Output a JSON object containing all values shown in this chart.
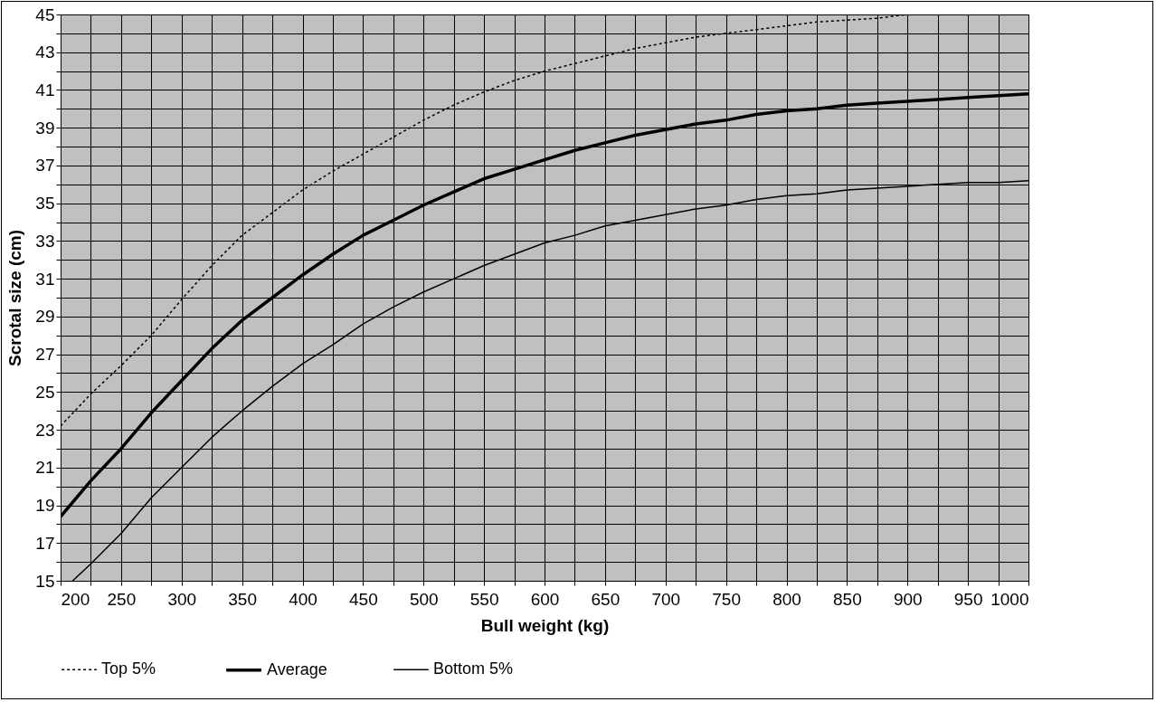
{
  "chart_data": {
    "type": "line",
    "xlabel": "Bull weight (kg)",
    "ylabel": "Scrotal size (cm)",
    "xlim": [
      200,
      1000
    ],
    "xticks": [
      200,
      {
        "value": 225,
        "label": null
      },
      250,
      {
        "value": 275,
        "label": null
      },
      300,
      {
        "value": 325,
        "label": null
      },
      350,
      {
        "value": 375,
        "label": null
      },
      400,
      {
        "value": 425,
        "label": null
      },
      450,
      {
        "value": 475,
        "label": null
      },
      500,
      {
        "value": 525,
        "label": null
      },
      550,
      {
        "value": 575,
        "label": null
      },
      600,
      {
        "value": 625,
        "label": null
      },
      650,
      {
        "value": 675,
        "label": null
      },
      700,
      {
        "value": 725,
        "label": null
      },
      750,
      {
        "value": 775,
        "label": null
      },
      800,
      {
        "value": 825,
        "label": null
      },
      850,
      {
        "value": 875,
        "label": null
      },
      900,
      {
        "value": 925,
        "label": null
      },
      950,
      {
        "value": 975,
        "label": null
      },
      1000
    ],
    "ylim": [
      15,
      45
    ],
    "yticks": [
      15,
      {
        "value": 16,
        "label": null
      },
      17,
      {
        "value": 18,
        "label": null
      },
      19,
      {
        "value": 20,
        "label": null
      },
      21,
      {
        "value": 22,
        "label": null
      },
      23,
      {
        "value": 24,
        "label": null
      },
      25,
      {
        "value": 26,
        "label": null
      },
      27,
      {
        "value": 28,
        "label": null
      },
      29,
      {
        "value": 30,
        "label": null
      },
      31,
      {
        "value": 32,
        "label": null
      },
      33,
      {
        "value": 34,
        "label": null
      },
      35,
      {
        "value": 36,
        "label": null
      },
      37,
      {
        "value": 38,
        "label": null
      },
      39,
      {
        "value": 40,
        "label": null
      },
      41,
      {
        "value": 42,
        "label": null
      },
      43,
      {
        "value": 44,
        "label": null
      },
      45
    ],
    "grid": true,
    "legend": "bottom",
    "marker": "none",
    "series": [
      {
        "name": "Top 5%",
        "color": "#000000",
        "line_style": "dotted",
        "x": [
          200,
          225,
          250,
          275,
          300,
          325,
          350,
          375,
          400,
          425,
          450,
          475,
          500,
          525,
          550,
          575,
          600,
          625,
          650,
          675,
          700,
          725,
          750,
          775,
          800,
          825,
          850,
          875,
          900,
          925
        ],
        "values": [
          23.2,
          24.9,
          26.4,
          28.0,
          29.9,
          31.7,
          33.3,
          34.5,
          35.7,
          36.7,
          37.6,
          38.5,
          39.4,
          40.2,
          40.9,
          41.5,
          42.0,
          42.4,
          42.8,
          43.2,
          43.5,
          43.8,
          44.0,
          44.2,
          44.4,
          44.6,
          44.7,
          44.8,
          45.0,
          45.0
        ]
      },
      {
        "name": "Average",
        "color": "#000000",
        "line_style": "solid",
        "x": [
          200,
          225,
          250,
          275,
          300,
          325,
          350,
          375,
          400,
          425,
          450,
          475,
          500,
          525,
          550,
          575,
          600,
          625,
          650,
          675,
          700,
          725,
          750,
          775,
          800,
          825,
          850,
          875,
          900,
          925,
          950,
          975,
          1000
        ],
        "values": [
          18.4,
          20.3,
          22.0,
          23.9,
          25.6,
          27.3,
          28.8,
          30.0,
          31.2,
          32.3,
          33.3,
          34.1,
          34.9,
          35.6,
          36.3,
          36.8,
          37.3,
          37.8,
          38.2,
          38.6,
          38.9,
          39.2,
          39.4,
          39.7,
          39.9,
          40.0,
          40.2,
          40.3,
          40.4,
          40.5,
          40.6,
          40.7,
          40.8
        ]
      },
      {
        "name": "Bottom 5%",
        "color": "#000000",
        "line_style": "solid",
        "x": [
          210,
          225,
          250,
          275,
          300,
          325,
          350,
          375,
          400,
          425,
          450,
          475,
          500,
          525,
          550,
          575,
          600,
          625,
          650,
          675,
          700,
          725,
          750,
          775,
          800,
          825,
          850,
          875,
          900,
          925,
          950,
          975,
          1000
        ],
        "values": [
          15.0,
          15.9,
          17.5,
          19.4,
          21.0,
          22.6,
          24.0,
          25.3,
          26.5,
          27.5,
          28.6,
          29.5,
          30.3,
          31.0,
          31.7,
          32.3,
          32.9,
          33.3,
          33.8,
          34.1,
          34.4,
          34.7,
          34.9,
          35.2,
          35.4,
          35.5,
          35.7,
          35.8,
          35.9,
          36.0,
          36.1,
          36.1,
          36.2
        ]
      }
    ]
  }
}
